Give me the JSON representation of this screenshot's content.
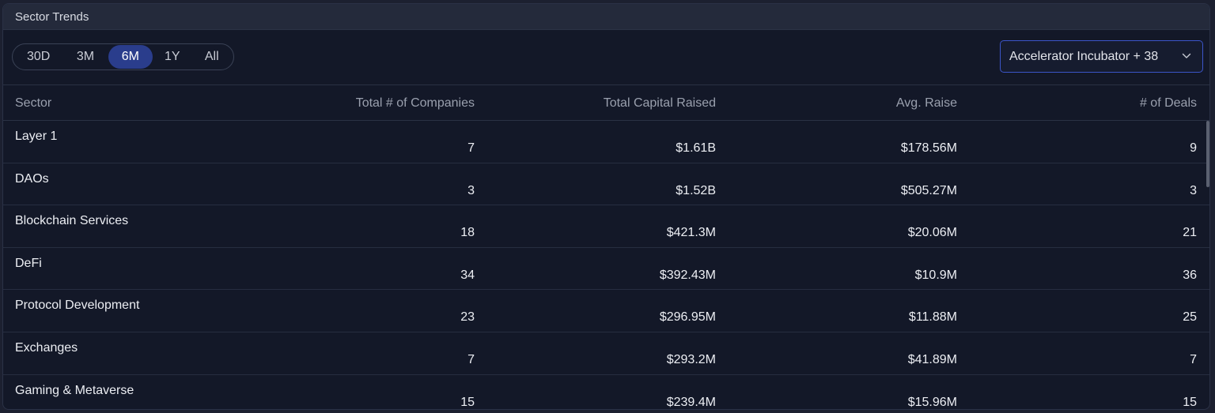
{
  "panel": {
    "title": "Sector Trends"
  },
  "ranges": [
    {
      "label": "30D",
      "active": false
    },
    {
      "label": "3M",
      "active": false
    },
    {
      "label": "6M",
      "active": true
    },
    {
      "label": "1Y",
      "active": false
    },
    {
      "label": "All",
      "active": false
    }
  ],
  "filter": {
    "label": "Accelerator Incubator + 38",
    "icon": "chevron-down-icon"
  },
  "columns": {
    "sector": "Sector",
    "companies": "Total # of Companies",
    "capital": "Total Capital Raised",
    "avg": "Avg. Raise",
    "deals": "# of Deals"
  },
  "rows": [
    {
      "sector": "Layer 1",
      "companies": "7",
      "capital": "$1.61B",
      "avg": "$178.56M",
      "deals": "9"
    },
    {
      "sector": "DAOs",
      "companies": "3",
      "capital": "$1.52B",
      "avg": "$505.27M",
      "deals": "3"
    },
    {
      "sector": "Blockchain Services",
      "companies": "18",
      "capital": "$421.3M",
      "avg": "$20.06M",
      "deals": "21"
    },
    {
      "sector": "DeFi",
      "companies": "34",
      "capital": "$392.43M",
      "avg": "$10.9M",
      "deals": "36"
    },
    {
      "sector": "Protocol Development",
      "companies": "23",
      "capital": "$296.95M",
      "avg": "$11.88M",
      "deals": "25"
    },
    {
      "sector": "Exchanges",
      "companies": "7",
      "capital": "$293.2M",
      "avg": "$41.89M",
      "deals": "7"
    },
    {
      "sector": "Gaming & Metaverse",
      "companies": "15",
      "capital": "$239.4M",
      "avg": "$15.96M",
      "deals": "15"
    }
  ]
}
